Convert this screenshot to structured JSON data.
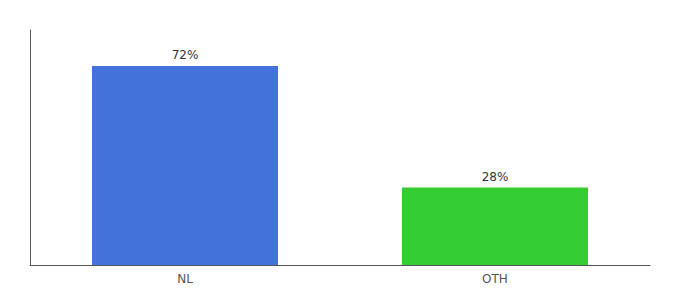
{
  "chart_data": {
    "type": "bar",
    "categories": [
      "NL",
      "OTH"
    ],
    "values": [
      72,
      28
    ],
    "value_labels": [
      "72%",
      "28%"
    ],
    "colors": [
      "#4472db",
      "#33cc33"
    ],
    "ylim": [
      0,
      85
    ],
    "grid": false,
    "data_labels": true,
    "tick_labels": "x"
  }
}
